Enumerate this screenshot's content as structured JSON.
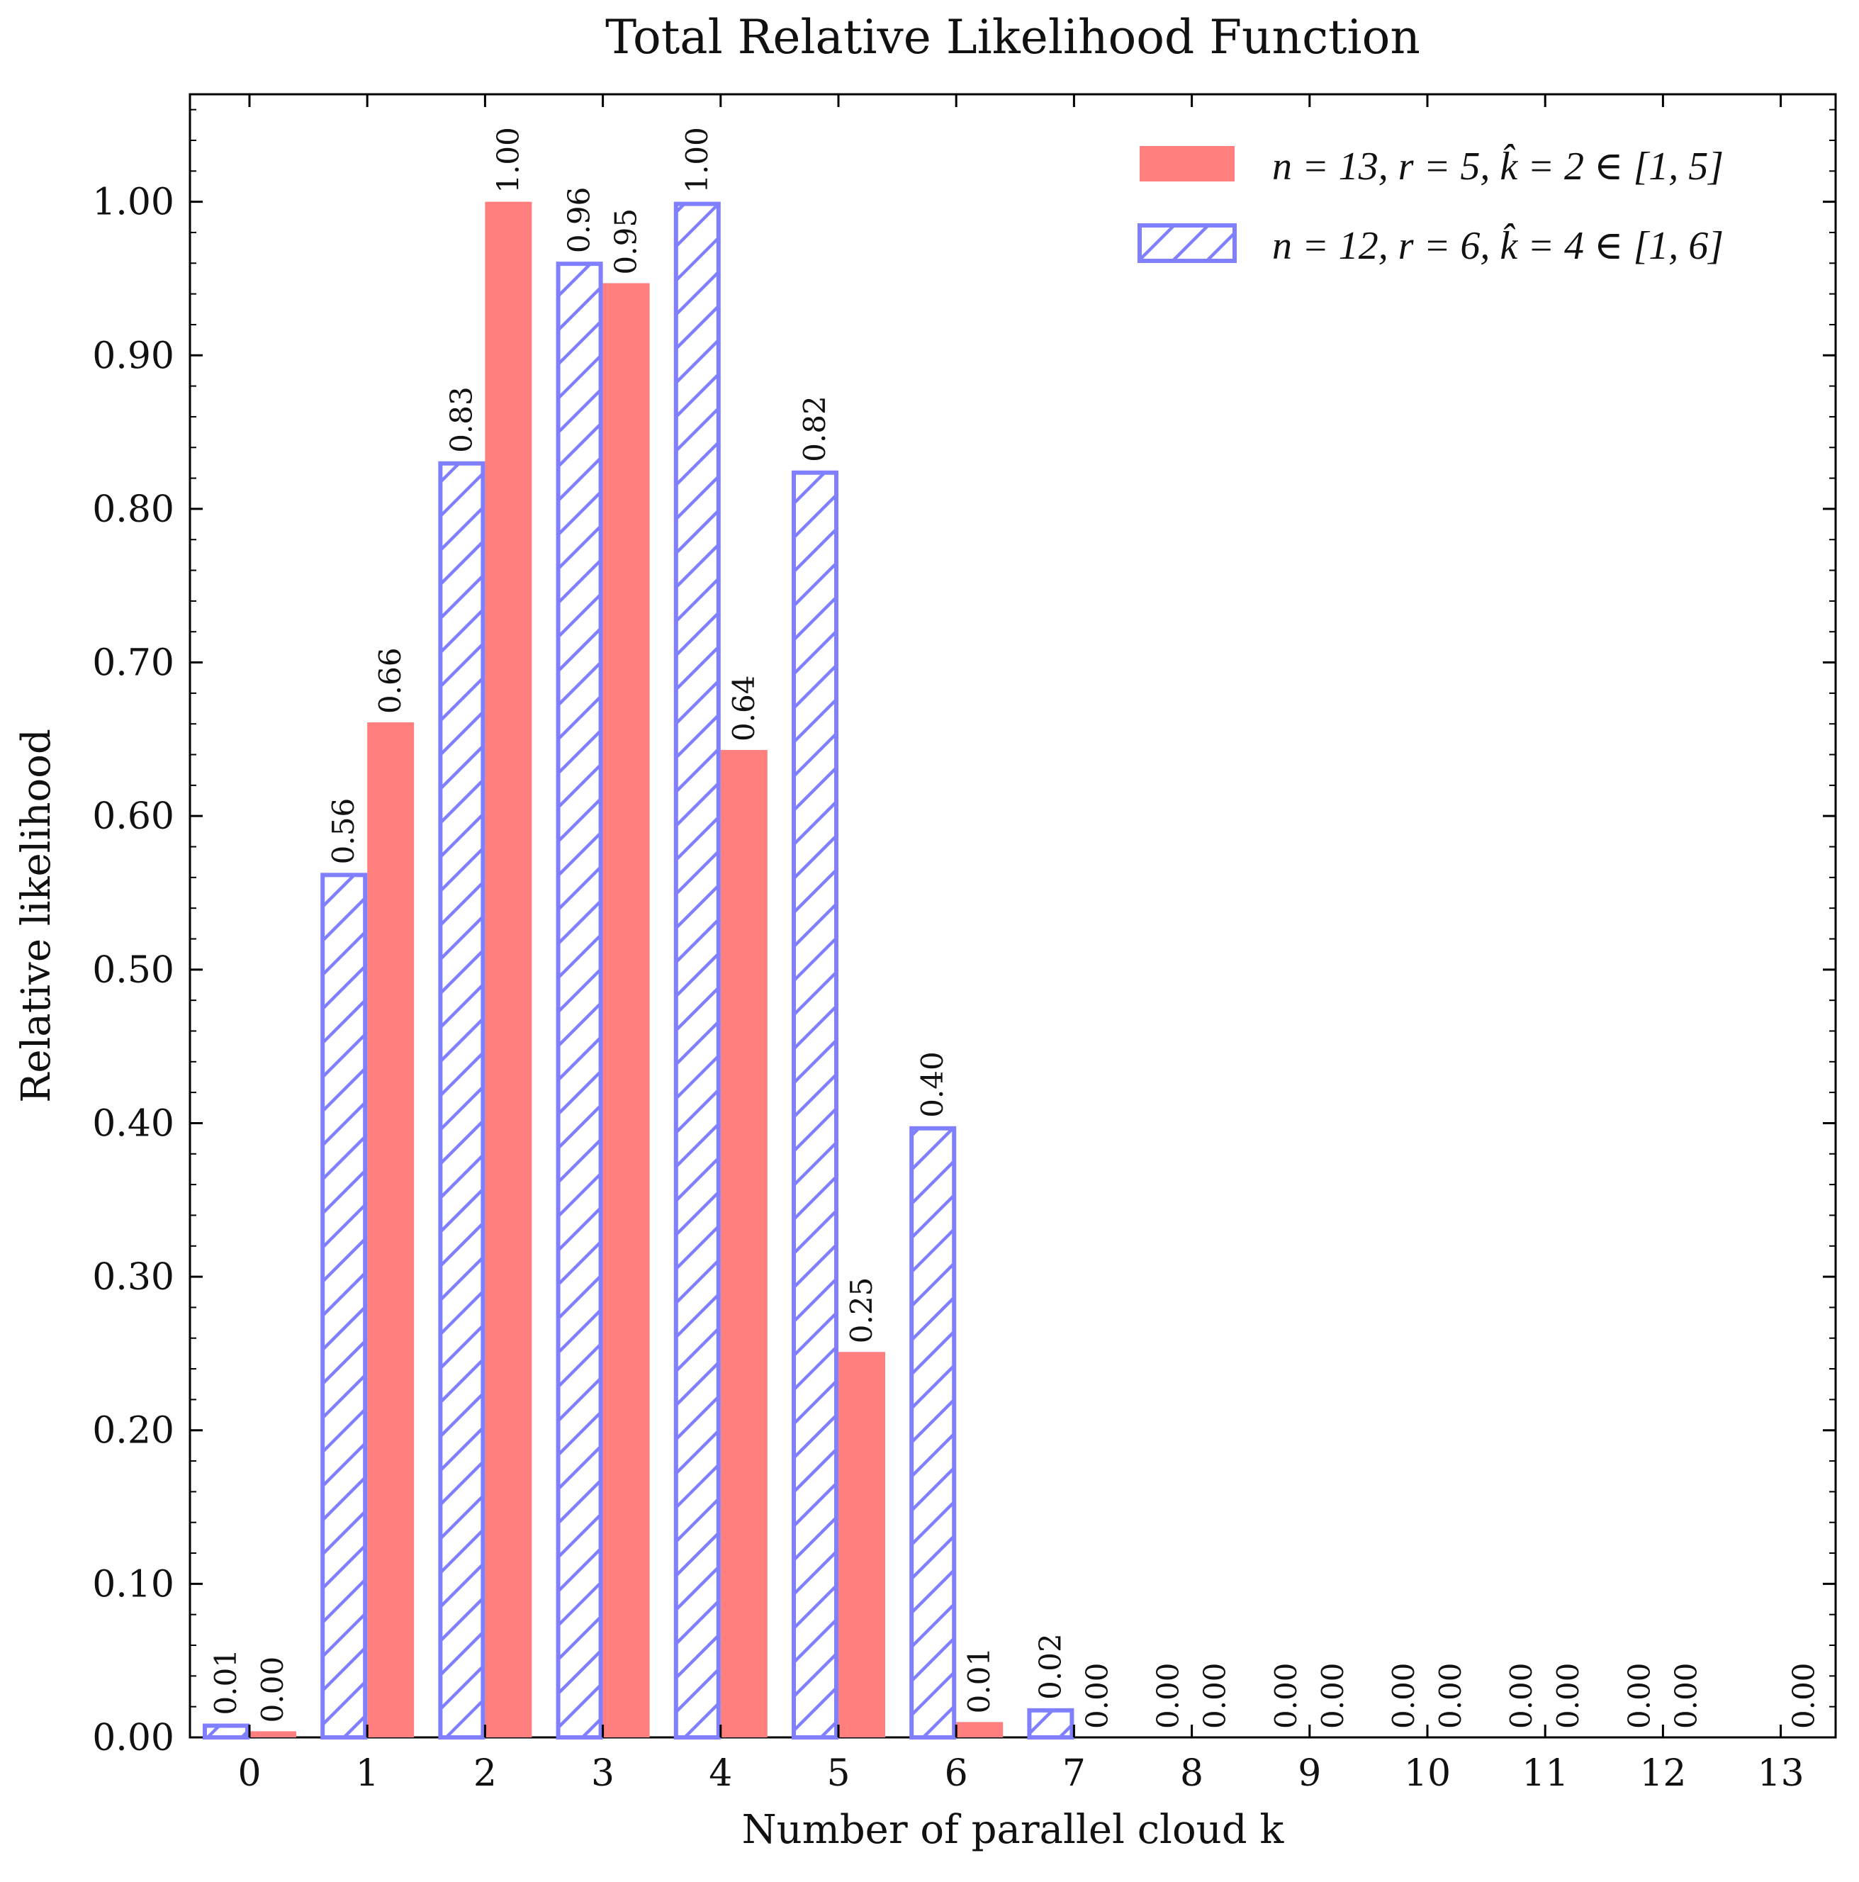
{
  "chart_data": {
    "type": "bar",
    "title": "Total Relative Likelihood Function",
    "xlabel": "Number of parallel cloud k",
    "ylabel": "Relative likelihood",
    "categories": [
      "0",
      "1",
      "2",
      "3",
      "4",
      "5",
      "6",
      "7",
      "8",
      "9",
      "10",
      "11",
      "12",
      "13"
    ],
    "ylim": [
      0,
      1.07
    ],
    "yticks": [
      0.0,
      0.1,
      0.2,
      0.3,
      0.4,
      0.5,
      0.6,
      0.7,
      0.8,
      0.9,
      1.0
    ],
    "ytick_labels": [
      "0.00",
      "0.10",
      "0.20",
      "0.30",
      "0.40",
      "0.50",
      "0.60",
      "0.70",
      "0.80",
      "0.90",
      "1.00"
    ],
    "legend_position": "top-right",
    "grid": false,
    "series": [
      {
        "name": "n = 13, r = 5, k̂ = 2 ∈ [1, 5]",
        "color": "#ff7f7f",
        "style": "solid",
        "values": [
          0.004,
          0.661,
          1.0,
          0.947,
          0.643,
          0.251,
          0.01,
          null,
          0.0,
          0.0,
          0.0,
          0.0,
          0.0,
          0.0
        ],
        "labels": [
          "0.00",
          "0.66",
          "1.00",
          "0.95",
          "0.64",
          "0.25",
          "0.01",
          null,
          "0.00",
          "0.00",
          "0.00",
          "0.00",
          "0.00",
          "0.00"
        ]
      },
      {
        "name": "n = 12, r = 6, k̂ = 4 ∈ [1, 6]",
        "color": "#7f7fff",
        "style": "hatched",
        "values": [
          0.009,
          0.563,
          0.831,
          0.961,
          1.0,
          0.825,
          0.398,
          0.019,
          0.0,
          0.0,
          0.0,
          0.0,
          0.0,
          null
        ],
        "labels": [
          "0.01",
          "0.56",
          "0.83",
          "0.96",
          "1.00",
          "0.82",
          "0.40",
          "0.02",
          "0.00",
          "0.00",
          "0.00",
          "0.00",
          "0.00",
          null
        ],
        "extra_labels": [
          {
            "category": "7",
            "label": "0.00"
          }
        ]
      }
    ]
  }
}
